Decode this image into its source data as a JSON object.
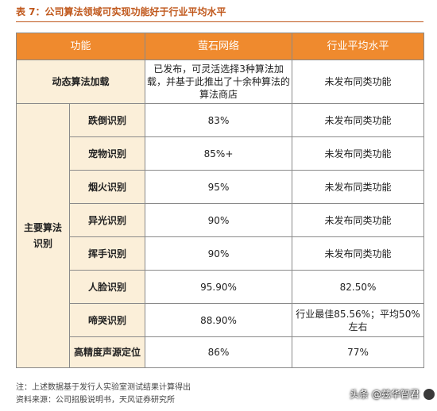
{
  "title": "表 7：公司算法领域可实现功能好于行业平均水平",
  "table": {
    "headers": [
      "功能",
      "萤石网络",
      "行业平均水平"
    ],
    "dynamic_row": {
      "label": "动态算法加载",
      "ezviz": "已发布，可灵活选择3种算法加载，并基于此推出了十余种算法的算法商店",
      "industry": "未发布同类功能"
    },
    "group_label": "主要算法识别",
    "rows": [
      {
        "name": "跌倒识别",
        "ezviz": "83%",
        "industry": "未发布同类功能"
      },
      {
        "name": "宠物识别",
        "ezviz": "85%+",
        "industry": "未发布同类功能"
      },
      {
        "name": "烟火识别",
        "ezviz": "95%",
        "industry": "未发布同类功能"
      },
      {
        "name": "异光识别",
        "ezviz": "90%",
        "industry": "未发布同类功能"
      },
      {
        "name": "挥手识别",
        "ezviz": "90%",
        "industry": "未发布同类功能"
      },
      {
        "name": "人脸识别",
        "ezviz": "95.90%",
        "industry": "82.50%"
      },
      {
        "name": "啼哭识别",
        "ezviz": "88.90%",
        "industry": "行业最佳85.56%；平均50%左右"
      },
      {
        "name": "高精度声源定位",
        "ezviz": "86%",
        "industry": "77%"
      }
    ]
  },
  "footnote": "注：上述数据基于发行人实验室测试结果计算得出",
  "source": "资料来源：公司招股说明书，天风证券研究所",
  "watermark": "头条 @兹华智君"
}
